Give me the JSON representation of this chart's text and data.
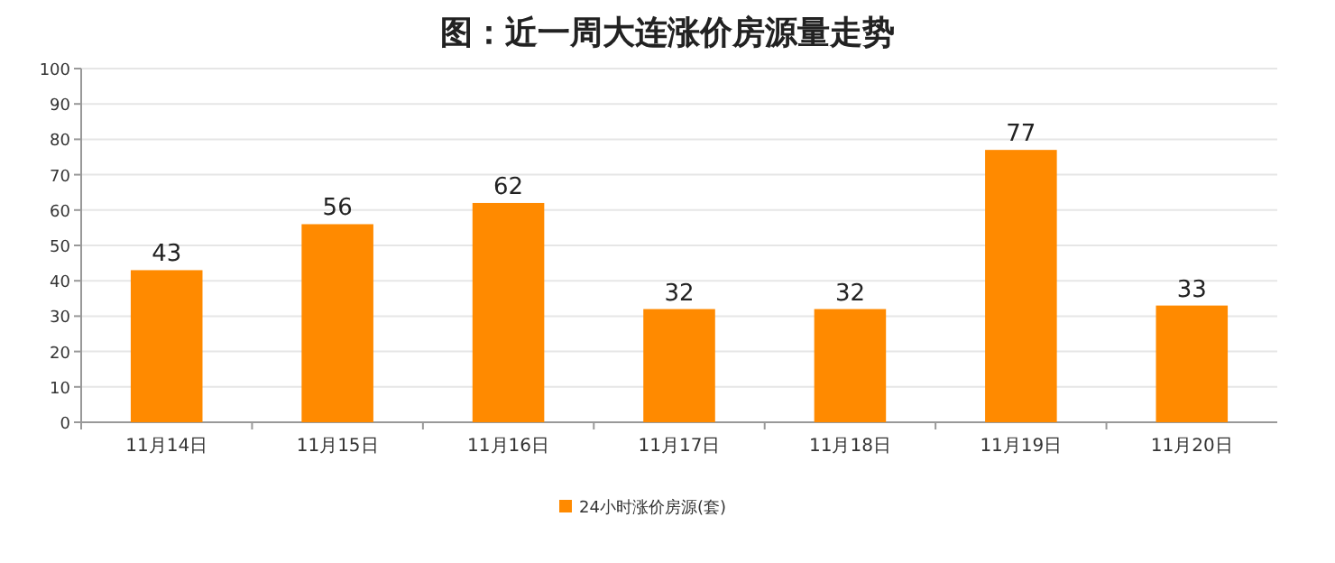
{
  "chart_data": {
    "type": "bar",
    "title": "图：近一周大连涨价房源量走势",
    "categories": [
      "11月14日",
      "11月15日",
      "11月16日",
      "11月17日",
      "11月18日",
      "11月19日",
      "11月20日"
    ],
    "series": [
      {
        "name": "24小时涨价房源(套)",
        "color": "#ff8a00",
        "values": [
          43,
          56,
          62,
          32,
          32,
          77,
          33
        ]
      }
    ],
    "ylim": [
      0,
      100
    ],
    "yticks": [
      0,
      10,
      20,
      30,
      40,
      50,
      60,
      70,
      80,
      90,
      100
    ],
    "grid": "y",
    "legend": "bottom",
    "data_labels": true
  }
}
